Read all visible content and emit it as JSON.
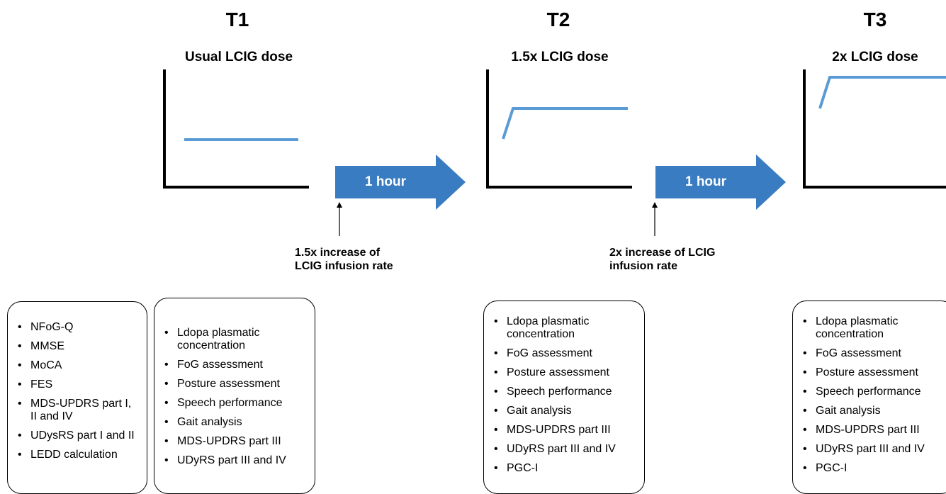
{
  "colors": {
    "accent": "#3a7cc1",
    "line": "#5b9bd5",
    "axis": "#000000"
  },
  "timepoints": [
    {
      "label": "T1",
      "dose": "Usual LCIG dose"
    },
    {
      "label": "T2",
      "dose": "1.5x LCIG dose"
    },
    {
      "label": "T3",
      "dose": "2x LCIG dose"
    }
  ],
  "transitions": [
    {
      "arrow_label": "1 hour",
      "note": "1.5x increase of LCIG infusion rate"
    },
    {
      "arrow_label": "1 hour",
      "note": "2x increase of LCIG infusion rate"
    }
  ],
  "boxes": [
    {
      "items": [
        "NFoG-Q",
        "MMSE",
        "MoCA",
        "FES",
        "MDS-UPDRS part I, II and IV",
        "UDysRS part I and II",
        "LEDD calculation"
      ]
    },
    {
      "items": [
        "Ldopa plasmatic concentration",
        "FoG assessment",
        "Posture assessment",
        "Speech performance",
        "Gait analysis",
        "MDS-UPDRS part III",
        "UDyRS part III and IV"
      ]
    },
    {
      "items": [
        "Ldopa plasmatic concentration",
        "FoG assessment",
        "Posture assessment",
        "Speech performance",
        "Gait analysis",
        "MDS-UPDRS part III",
        "UDyRS part III and IV",
        "PGC-I"
      ]
    },
    {
      "items": [
        "Ldopa plasmatic concentration",
        "FoG assessment",
        "Posture assessment",
        "Speech performance",
        "Gait analysis",
        "MDS-UPDRS part III",
        "UDyRS part III and IV",
        "PGC-I"
      ]
    }
  ]
}
